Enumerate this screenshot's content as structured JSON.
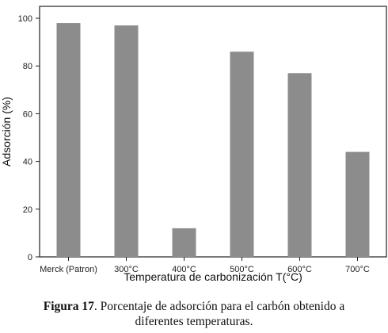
{
  "chart_data": {
    "type": "bar",
    "categories": [
      "Merck (Patron)",
      "300°C",
      "400°C",
      "500°C",
      "600°C",
      "700°C"
    ],
    "values": [
      98,
      97,
      12,
      86,
      77,
      44
    ],
    "xlabel": "Temperatura de carbonización T(°C)",
    "ylabel": "Adsorción (%)",
    "ylim": [
      0,
      105
    ],
    "yticks": [
      0,
      20,
      40,
      60,
      80,
      100
    ],
    "grid": false,
    "bar_color": "#8c8c8c",
    "axis_color": "#222222"
  },
  "caption": {
    "label": "Figura 17",
    "text_line1": ". Porcentaje de adsorción para el carbón obtenido a",
    "text_line2": "diferentes temperaturas."
  }
}
